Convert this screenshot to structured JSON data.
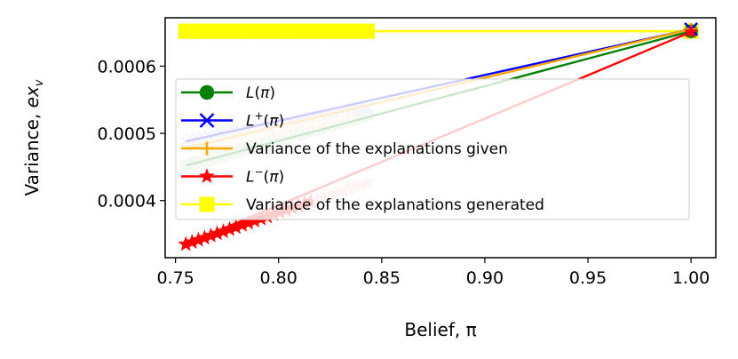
{
  "chart_data": {
    "type": "line",
    "xlabel": "Belief, π",
    "ylabel": "Variance, ex_v",
    "xlim": [
      0.745,
      1.012
    ],
    "ylim": [
      0.000315,
      0.000672
    ],
    "x_ticks": [
      "0.75",
      "0.80",
      "0.85",
      "0.90",
      "0.95",
      "1.00"
    ],
    "x_tick_values": [
      0.75,
      0.8,
      0.85,
      0.9,
      0.95,
      1.0
    ],
    "y_ticks": [
      "0.0004",
      "0.0005",
      "0.0006"
    ],
    "y_tick_values": [
      0.0004,
      0.0005,
      0.0006
    ],
    "legend_position": "center-left",
    "series": [
      {
        "name": "L(π)",
        "legend_main": "L",
        "legend_sup": "",
        "legend_arg": "(π)",
        "color": "#008000",
        "faded_color": "#c8e6c4",
        "marker": "circle",
        "x": [
          0.755,
          1.0
        ],
        "y": [
          0.000452,
          0.000652
        ],
        "scatter_x_range": [
          0.755,
          0.843
        ],
        "scatter_y_range": [
          0.000452,
          0.000528
        ]
      },
      {
        "name": "L⁺(π)",
        "legend_main": "L",
        "legend_sup": "+",
        "legend_arg": "(π)",
        "color": "#0000ff",
        "faded_color": "#c8cdfa",
        "marker": "x",
        "x": [
          0.755,
          1.0
        ],
        "y": [
          0.000488,
          0.000655
        ],
        "scatter_x_range": [
          0.755,
          0.843
        ],
        "scatter_y_range": [
          0.000488,
          0.000536
        ]
      },
      {
        "name": "Variance of the explanations given",
        "legend_main": "Variance of the explanations given",
        "legend_sup": "",
        "legend_arg": "",
        "color": "#ffa500",
        "faded_color": "#fde4c4",
        "marker": "plus",
        "x": [
          0.755,
          1.0
        ],
        "y": [
          0.000478,
          0.000655
        ],
        "scatter_x_range": [
          0.755,
          0.835
        ],
        "scatter_y_range": [
          0.000478,
          0.000525
        ]
      },
      {
        "name": "L⁻(π)",
        "legend_main": "L",
        "legend_sup": "−",
        "legend_arg": "(π)",
        "color": "#ff0000",
        "faded_color": "#ffc6c6",
        "marker": "star",
        "x": [
          0.755,
          1.0
        ],
        "y": [
          0.000335,
          0.000651
        ],
        "scatter_x_range": [
          0.755,
          0.843
        ],
        "scatter_y_range": [
          0.000335,
          0.000427
        ]
      },
      {
        "name": "Variance of the explanations generated",
        "legend_main": "Variance of the explanations generated",
        "legend_sup": "",
        "legend_arg": "",
        "color": "#ffff00",
        "faded_color": "#ffff00",
        "marker": "square",
        "x": [
          0.755,
          1.0
        ],
        "y": [
          0.000652,
          0.000652
        ],
        "scatter_x_range": [
          0.755,
          0.843
        ],
        "scatter_y_range": [
          0.000652,
          0.000652
        ]
      }
    ]
  }
}
